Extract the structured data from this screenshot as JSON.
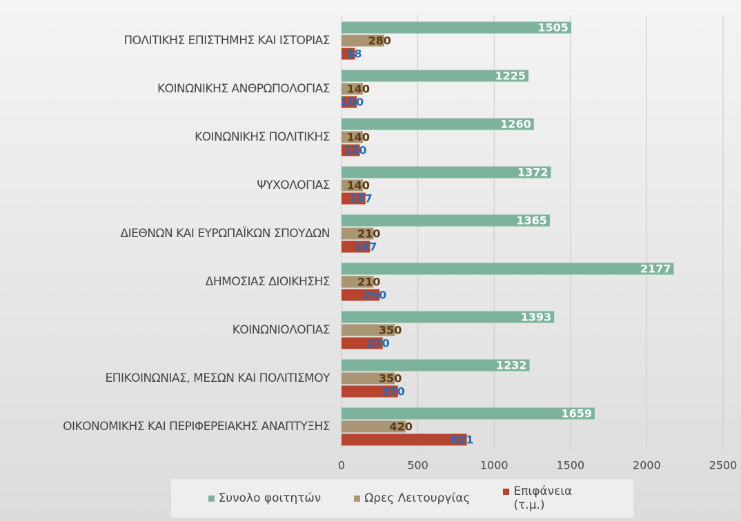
{
  "chart_data": {
    "type": "hbar",
    "categories": [
      "ΠΟΛΙΤΙΚΗΣ ΕΠΙΣΤΗΜΗΣ ΚΑΙ ΙΣΤΟΡΙΑΣ",
      "ΚΟΙΝΩΝΙΚΗΣ ΑΝΘΡΩΠΟΛΟΓΙΑΣ",
      "ΚΟΙΝΩΝΙΚΗΣ ΠΟΛΙΤΙΚΗΣ",
      "ΨΥΧΟΛΟΓΙΑΣ",
      "ΔΙΕΘΝΩΝ ΚΑΙ ΕΥΡΩΠΑΪΚΩΝ ΣΠΟΥΔΩΝ",
      "ΔΗΜΟΣΙΑΣ ΔΙΟΙΚΗΣΗΣ",
      "ΚΟΙΝΩΝΙΟΛΟΓΙΑΣ",
      "ΕΠΙΚΟΙΝΩΝΙΑΣ, ΜΕΣΩΝ ΚΑΙ ΠΟΛΙΤΙΣΜΟΥ",
      "ΟΙΚΟΝΟΜΙΚΗΣ ΚΑΙ ΠΕΡΙΦΕΡΕΙΑΚΗΣ ΑΝΑΠΤΥΞΗΣ"
    ],
    "series": [
      {
        "name": "Συνολο φοιτητών",
        "color": "#7db39c",
        "label_color": "#ffffff",
        "values": [
          1505,
          1225,
          1260,
          1372,
          1365,
          2177,
          1393,
          1232,
          1659
        ]
      },
      {
        "name": "Ωρες Λειτουργίας",
        "color": "#a99473",
        "label_color": "#5c3a0e",
        "values": [
          280,
          140,
          140,
          140,
          210,
          210,
          350,
          350,
          420
        ]
      },
      {
        "name": "Επιφάνεια (τ.μ.)",
        "color": "#b8432e",
        "label_color": "#1f6dbf",
        "values": [
          88,
          100,
          120,
          157,
          187,
          250,
          270,
          370,
          821
        ]
      }
    ],
    "xlim": [
      0,
      2500
    ],
    "xticks": [
      0,
      500,
      1000,
      1500,
      2000,
      2500
    ],
    "grid": true,
    "legend": "bottom"
  }
}
